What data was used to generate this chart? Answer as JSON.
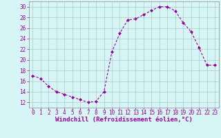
{
  "x": [
    0,
    1,
    2,
    3,
    4,
    5,
    6,
    7,
    8,
    9,
    10,
    11,
    12,
    13,
    14,
    15,
    16,
    17,
    18,
    19,
    20,
    21,
    22,
    23
  ],
  "y": [
    17.0,
    16.5,
    15.0,
    14.0,
    13.5,
    13.0,
    12.5,
    12.0,
    12.2,
    14.0,
    21.5,
    25.0,
    27.5,
    27.7,
    28.5,
    29.3,
    30.0,
    30.0,
    29.2,
    27.0,
    25.3,
    22.3,
    19.0,
    19.0
  ],
  "line_color": "#990099",
  "marker": "D",
  "marker_size": 2,
  "bg_color": "#d8f5f5",
  "grid_color": "#aacccc",
  "xlabel": "Windchill (Refroidissement éolien,°C)",
  "xlabel_fontsize": 6.5,
  "tick_fontsize": 5.5,
  "xlim": [
    -0.5,
    23.5
  ],
  "ylim": [
    11,
    31
  ],
  "yticks": [
    12,
    14,
    16,
    18,
    20,
    22,
    24,
    26,
    28,
    30
  ],
  "xticks": [
    0,
    1,
    2,
    3,
    4,
    5,
    6,
    7,
    8,
    9,
    10,
    11,
    12,
    13,
    14,
    15,
    16,
    17,
    18,
    19,
    20,
    21,
    22,
    23
  ]
}
